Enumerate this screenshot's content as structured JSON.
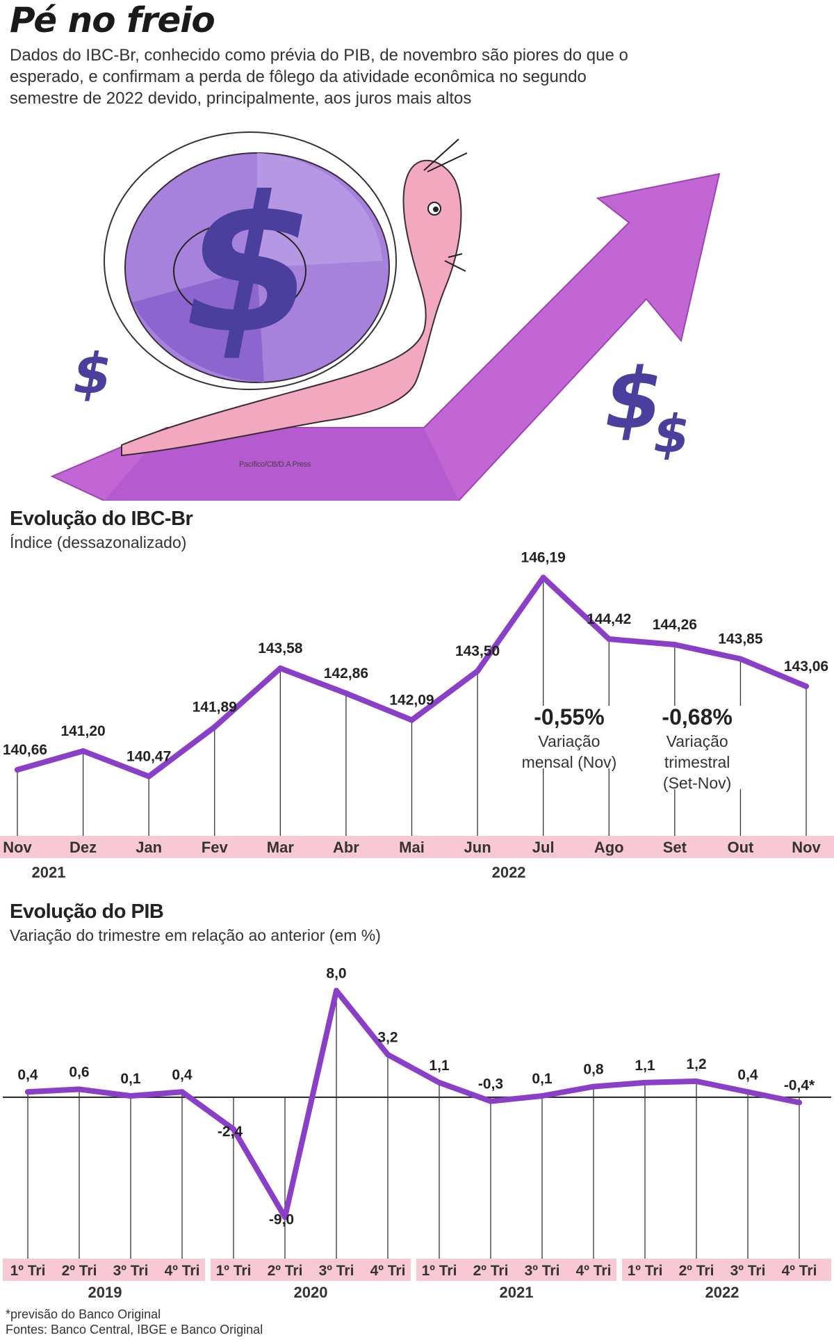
{
  "header": {
    "title": "Pé no freio",
    "lead": "Dados do IBC-Br, conhecido como prévia do PIB, de novembro são piores do que o esperado, e confirmam a perda de fôlego da atividade econômica no segundo semestre de 2022 devido, principalmente, aos juros mais altos"
  },
  "illustration": {
    "credit": "Pacífico/CB/D.A Press",
    "dollar_sign": "$",
    "icons": [
      "snail-illustration",
      "rising-arrow-illustration",
      "dollar-sign-icon"
    ],
    "colors": {
      "arrow": "#c266d6",
      "snail_shell": "#a782dc",
      "snail_body": "#f2a9c0",
      "dollar": "#4b3f9e"
    }
  },
  "chart_data": [
    {
      "type": "line",
      "title": "Evolução do IBC-Br",
      "subtitle": "Índice (dessazonalizado)",
      "categories": [
        "Nov",
        "Dez",
        "Jan",
        "Fev",
        "Mar",
        "Abr",
        "Mai",
        "Jun",
        "Jul",
        "Ago",
        "Set",
        "Out",
        "Nov"
      ],
      "values": [
        140.66,
        141.2,
        140.47,
        141.89,
        143.58,
        142.86,
        142.09,
        143.5,
        146.19,
        144.42,
        144.26,
        143.85,
        143.06
      ],
      "value_labels": [
        "140,66",
        "141,20",
        "140,47",
        "141,89",
        "143,58",
        "142,86",
        "142,09",
        "143,50",
        "146,19",
        "144,42",
        "144,26",
        "143,85",
        "143,06"
      ],
      "year_labels": [
        {
          "label": "2021",
          "under": 0
        },
        {
          "label": "2022",
          "under": 7
        }
      ],
      "annotations": [
        {
          "value": "-0,55%",
          "label": [
            "Variação",
            "mensal (Nov)"
          ]
        },
        {
          "value": "-0,68%",
          "label": [
            "Variação",
            "trimestral",
            "(Set-Nov)"
          ]
        }
      ],
      "ylim": [
        140.0,
        146.6
      ],
      "line_color": "#8a3fc9",
      "band_color": "#f8c9d5"
    },
    {
      "type": "line",
      "title": "Evolução do PIB",
      "subtitle": "Variação do trimestre em relação ao anterior (em %)",
      "categories": [
        "1º Tri",
        "2º Tri",
        "3º Tri",
        "4º Tri",
        "1º Tri",
        "2º Tri",
        "3º Tri",
        "4º Tri",
        "1º Tri",
        "2º Tri",
        "3º Tri",
        "4º Tri",
        "1º Tri",
        "2º Tri",
        "3º Tri",
        "4º Tri"
      ],
      "values": [
        0.4,
        0.6,
        0.1,
        0.4,
        -2.4,
        -9.0,
        8.0,
        3.2,
        1.1,
        -0.3,
        0.1,
        0.8,
        1.1,
        1.2,
        0.4,
        -0.4
      ],
      "value_labels": [
        "0,4",
        "0,6",
        "0,1",
        "0,4",
        "-2,4",
        "-9,0",
        "8,0",
        "3,2",
        "1,1",
        "-0,3",
        "0,1",
        "0,8",
        "1,1",
        "1,2",
        "0,4",
        "-0,4*"
      ],
      "year_labels": [
        "2019",
        "2020",
        "2021",
        "2022"
      ],
      "ylim": [
        -9.5,
        8.5
      ],
      "line_color": "#8a3fc9",
      "band_color": "#f8c9d5"
    }
  ],
  "footnotes": {
    "note": "*previsão do Banco Original",
    "sources": "Fontes: Banco Central, IBGE e Banco Original"
  }
}
